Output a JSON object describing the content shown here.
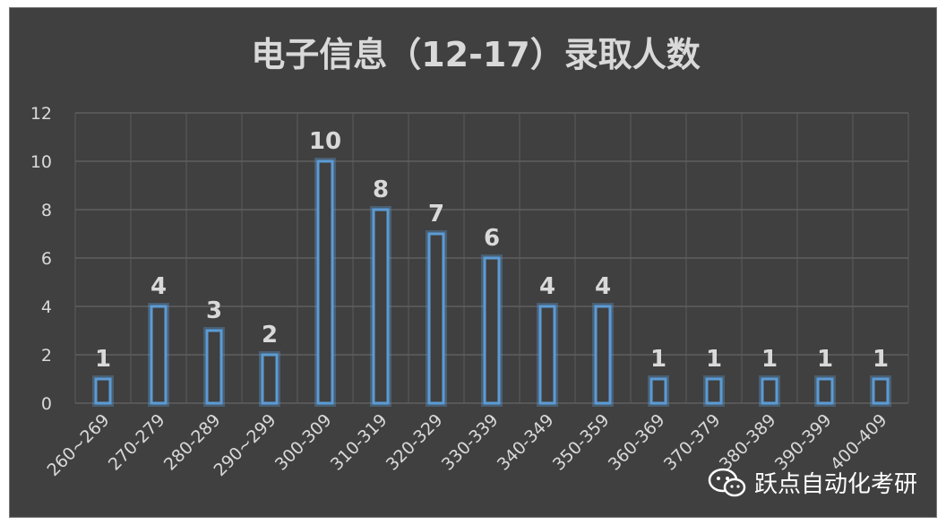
{
  "chart_data": {
    "type": "bar",
    "title": "电子信息（12-17）录取人数",
    "categories": [
      "260~269",
      "270-279",
      "280-289",
      "290~299",
      "300-309",
      "310-319",
      "320-329",
      "330-339",
      "340-349",
      "350-359",
      "360-369",
      "370-379",
      "380-389",
      "390-399",
      "400-409"
    ],
    "values": [
      1,
      4,
      3,
      2,
      10,
      8,
      7,
      6,
      4,
      4,
      1,
      1,
      1,
      1,
      1
    ],
    "data_labels": [
      "1",
      "4",
      "3",
      "2",
      "10",
      "8",
      "7",
      "6",
      "4",
      "4",
      "1",
      "1",
      "1",
      "1",
      "1"
    ],
    "yticks": [
      "0",
      "2",
      "4",
      "6",
      "8",
      "10",
      "12"
    ],
    "ylim": [
      0,
      12
    ],
    "grid": true,
    "bar_color": "#5b9bd5",
    "background": "#404040"
  },
  "watermark": {
    "text": "跃点自动化考研",
    "icon": "wechat-icon"
  }
}
